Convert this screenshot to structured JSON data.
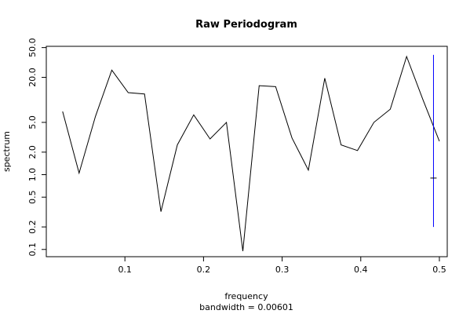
{
  "chart_data": {
    "type": "line",
    "title": "Raw Periodogram",
    "xlabel": "frequency",
    "ylabel": "spectrum",
    "subtitle": "bandwidth = 0.00601",
    "y_scale": "log",
    "xlim": [
      0.0,
      0.51
    ],
    "ylim": [
      0.08,
      52
    ],
    "x_ticks": [
      0.1,
      0.2,
      0.3,
      0.4,
      0.5
    ],
    "x_tick_labels": [
      "0.1",
      "0.2",
      "0.3",
      "0.4",
      "0.5"
    ],
    "y_ticks": [
      0.1,
      0.2,
      0.5,
      1.0,
      2.0,
      5.0,
      20.0,
      50.0
    ],
    "y_tick_labels": [
      "0.1",
      "0.2",
      "0.5",
      "1.0",
      "2.0",
      "5.0",
      "20.0",
      "50.0"
    ],
    "series": [
      {
        "color": "#000000",
        "x": [
          0.0208,
          0.0417,
          0.0625,
          0.0833,
          0.1042,
          0.125,
          0.1458,
          0.1667,
          0.1875,
          0.2083,
          0.2292,
          0.25,
          0.2708,
          0.2917,
          0.3125,
          0.3333,
          0.3542,
          0.375,
          0.3958,
          0.4167,
          0.4375,
          0.4583,
          0.4792,
          0.5
        ],
        "y": [
          7.0,
          1.05,
          6.0,
          25.0,
          12.5,
          12.0,
          0.32,
          2.5,
          6.3,
          3.0,
          5.0,
          0.095,
          15.5,
          15.0,
          3.1,
          1.15,
          19.5,
          2.5,
          2.1,
          5.0,
          7.5,
          38.0,
          10.0,
          2.8
        ]
      }
    ],
    "ci_bar": {
      "color": "#0000ff",
      "x": 0.4925,
      "lower": 0.2,
      "center": 0.9,
      "upper": 40.0
    }
  }
}
